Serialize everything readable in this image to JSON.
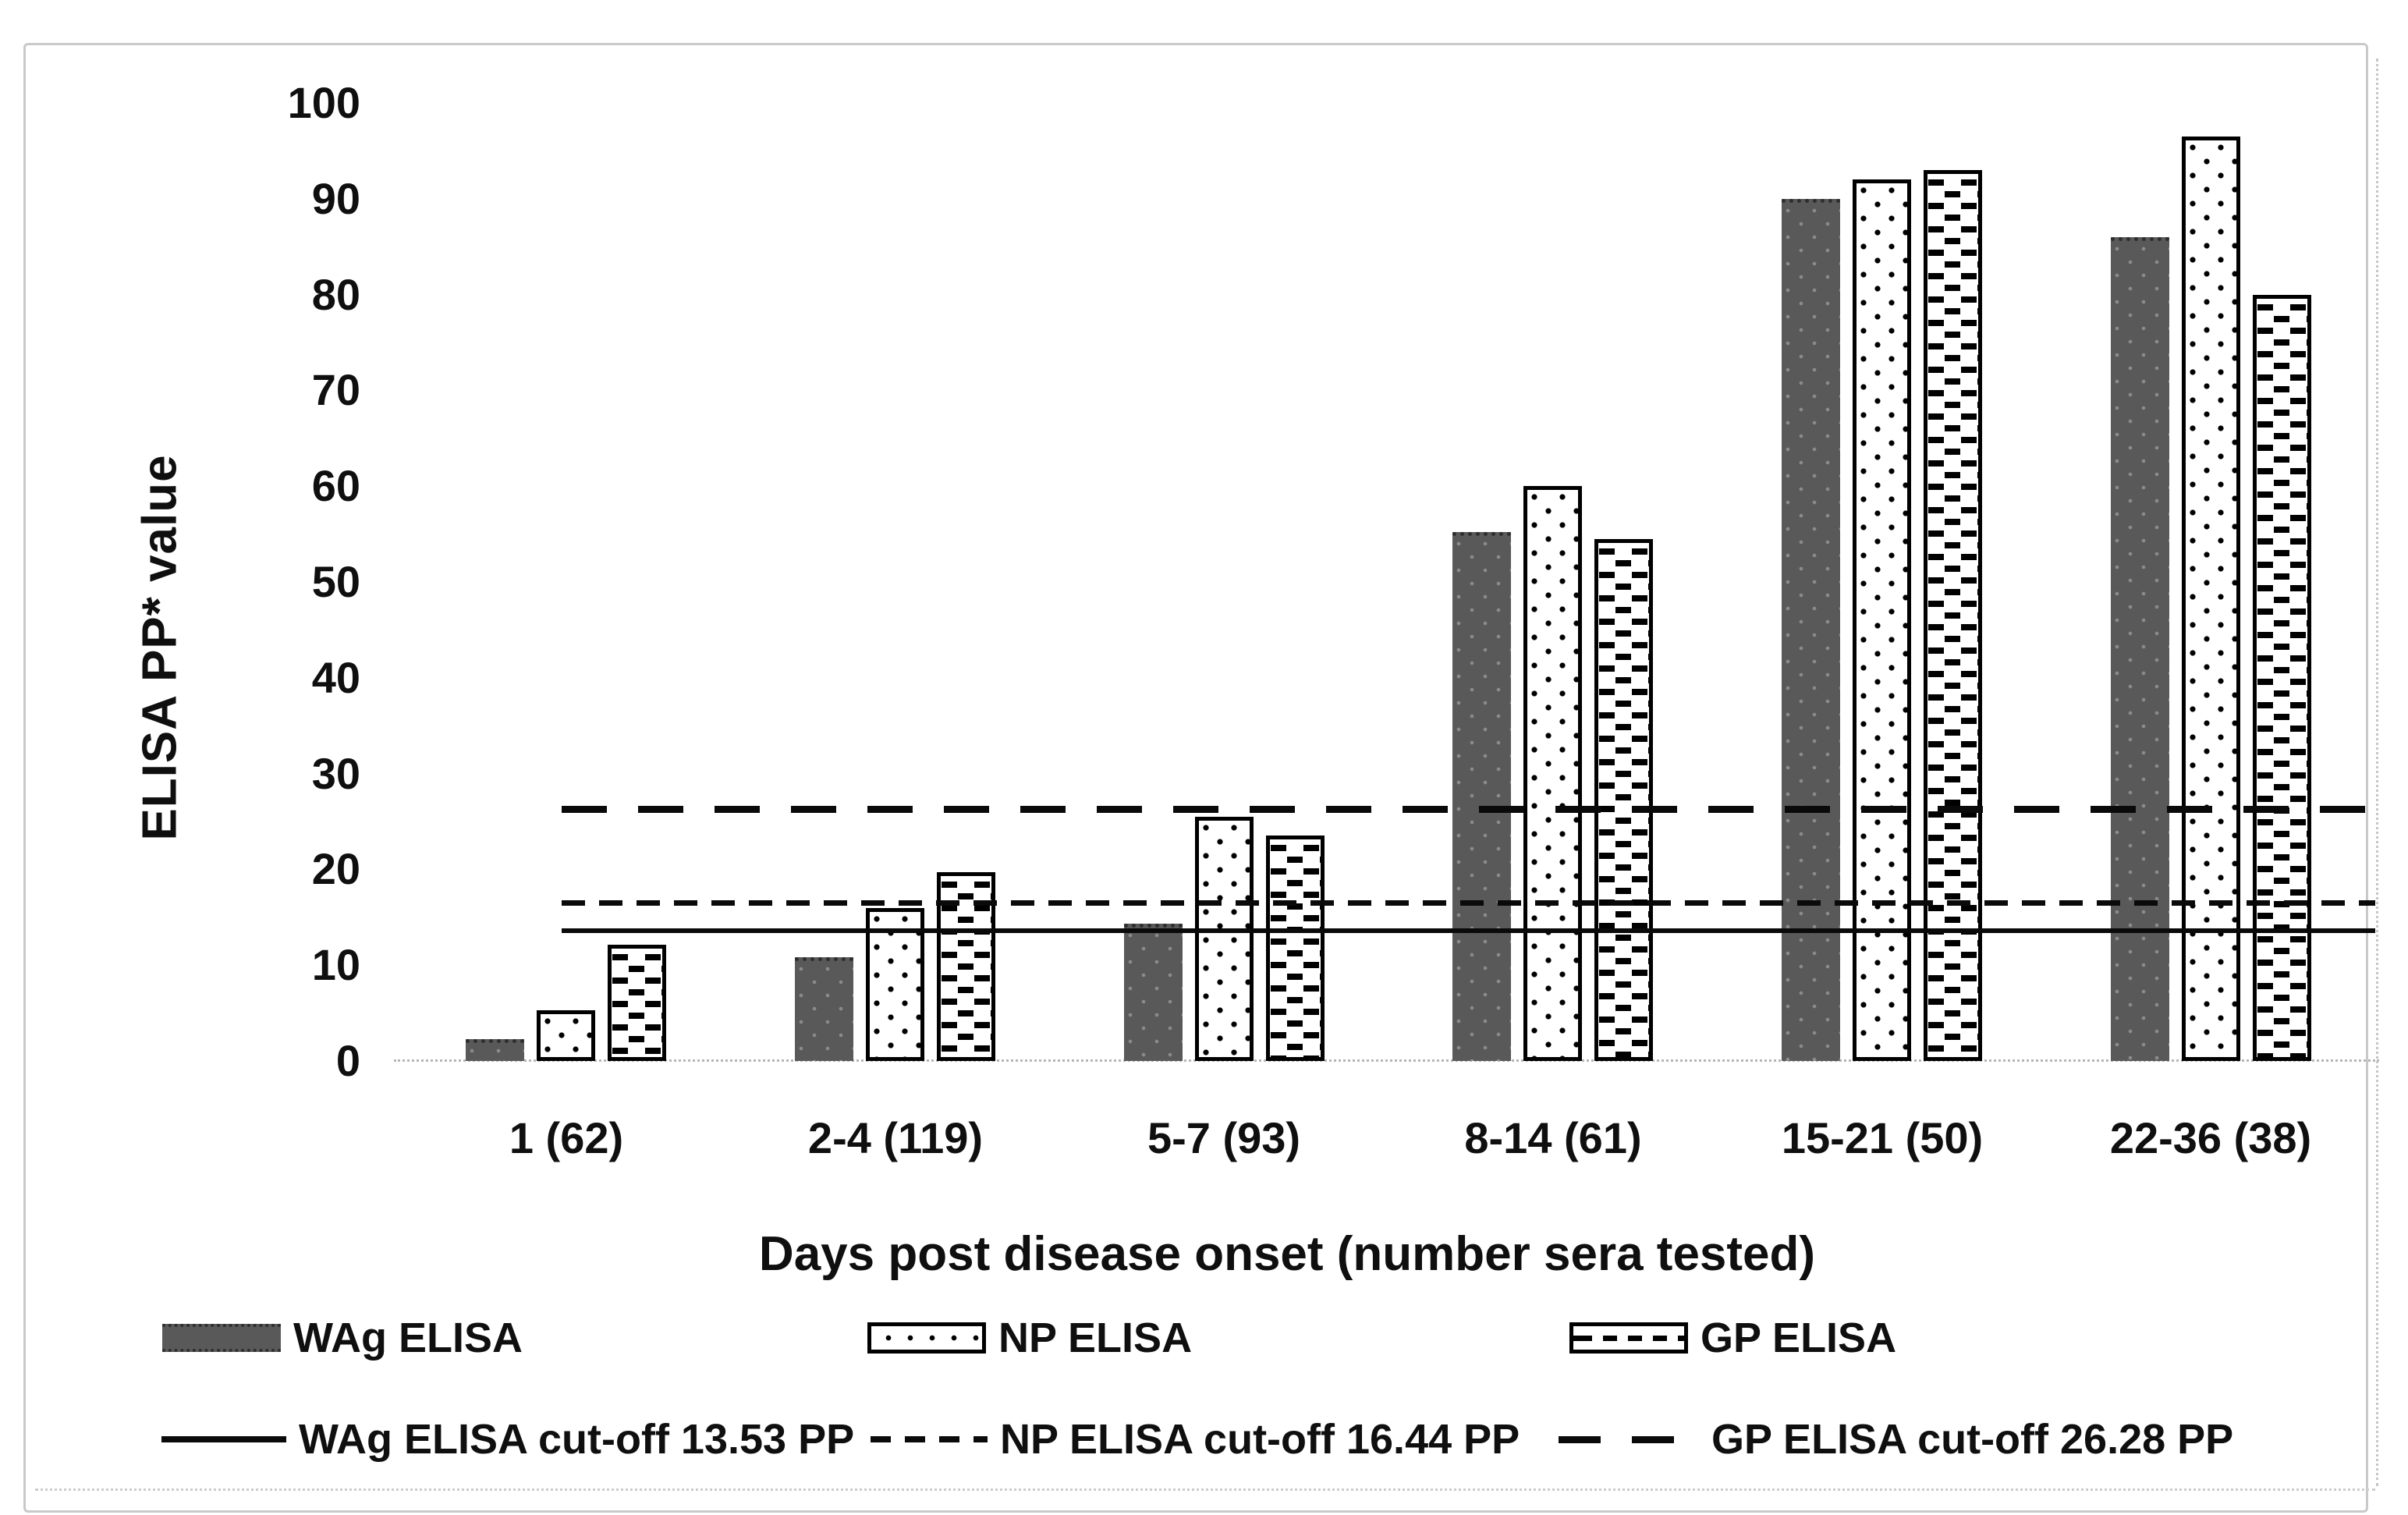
{
  "chart_data": {
    "type": "bar",
    "title": "",
    "categories": [
      "1 (62)",
      "2-4 (119)",
      "5-7 (93)",
      "8-14 (61)",
      "15-21 (50)",
      "22-36 (38)"
    ],
    "series": [
      {
        "name": "WAg ELISA",
        "pattern": "solid dark gray fill",
        "values": [
          2.3,
          10.8,
          14.3,
          55.2,
          90.0,
          86.0
        ]
      },
      {
        "name": "NP ELISA",
        "pattern": "white fill with black dots, black outline",
        "values": [
          5.3,
          16.0,
          25.5,
          60.0,
          92.0,
          96.5
        ]
      },
      {
        "name": "GP ELISA",
        "pattern": "white fill with black dashes, black outline",
        "values": [
          12.1,
          19.7,
          23.5,
          54.5,
          93.0,
          80.0
        ]
      }
    ],
    "cutoff_lines": [
      {
        "name": "WAg ELISA cut-off 13.53 PP",
        "value": 13.53,
        "style": "solid"
      },
      {
        "name": "NP ELISA cut-off 16.44 PP",
        "value": 16.44,
        "style": "dashed-fine"
      },
      {
        "name": "GP ELISA cut-off 26.28 PP",
        "value": 26.28,
        "style": "dashed-coarse"
      }
    ],
    "xlabel": "Days post disease onset (number sera tested)",
    "ylabel": "ELISA PP* value",
    "ylim": [
      0,
      100
    ],
    "yticks": [
      0,
      10,
      20,
      30,
      40,
      50,
      60,
      70,
      80,
      90,
      100
    ],
    "grid": false,
    "legend_position": "bottom"
  },
  "colors": {
    "wag_bar_fill": "#595959",
    "pattern_black": "#000000",
    "text": "#0f0f0f",
    "figure_border": "#c9c9c9",
    "axis_line": "#b5b5b5",
    "background": "#ffffff"
  }
}
